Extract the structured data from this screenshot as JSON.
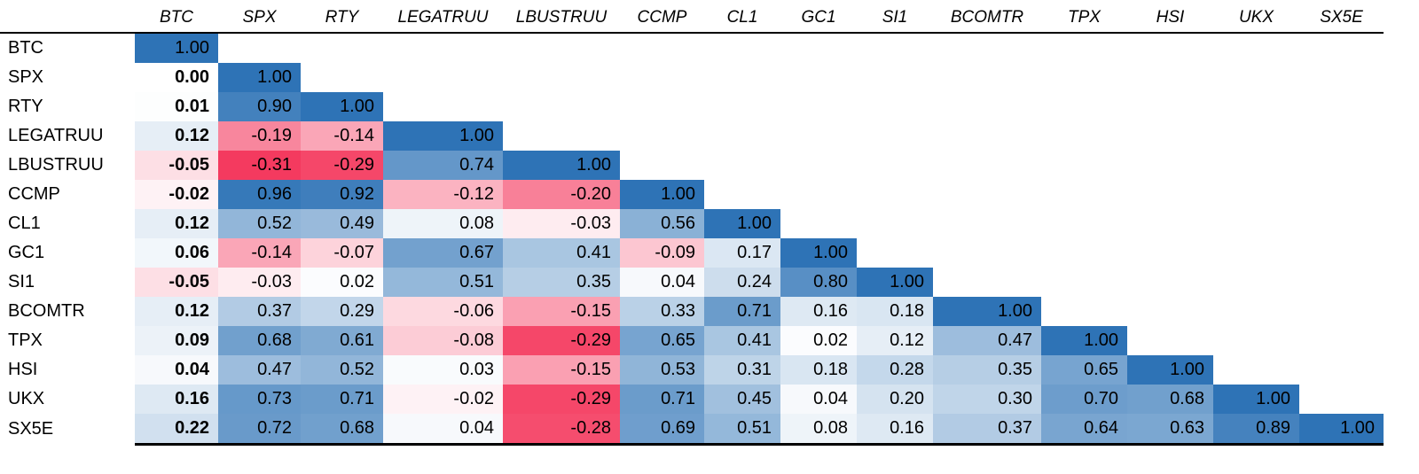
{
  "chart_data": {
    "type": "heatmap",
    "title": "",
    "labels": [
      "BTC",
      "SPX",
      "RTY",
      "LEGATRUU",
      "LBUSTRUU",
      "CCMP",
      "CL1",
      "GC1",
      "SI1",
      "BCOMTR",
      "TPX",
      "HSI",
      "UKX",
      "SX5E"
    ],
    "matrix": [
      [
        1.0
      ],
      [
        0.0,
        1.0
      ],
      [
        0.01,
        0.9,
        1.0
      ],
      [
        0.12,
        -0.19,
        -0.14,
        1.0
      ],
      [
        -0.05,
        -0.31,
        -0.29,
        0.74,
        1.0
      ],
      [
        -0.02,
        0.96,
        0.92,
        -0.12,
        -0.2,
        1.0
      ],
      [
        0.12,
        0.52,
        0.49,
        0.08,
        -0.03,
        0.56,
        1.0
      ],
      [
        0.06,
        -0.14,
        -0.07,
        0.67,
        0.41,
        -0.09,
        0.17,
        1.0
      ],
      [
        -0.05,
        -0.03,
        0.02,
        0.51,
        0.35,
        0.04,
        0.24,
        0.8,
        1.0
      ],
      [
        0.12,
        0.37,
        0.29,
        -0.06,
        -0.15,
        0.33,
        0.71,
        0.16,
        0.18,
        1.0
      ],
      [
        0.09,
        0.68,
        0.61,
        -0.08,
        -0.29,
        0.65,
        0.41,
        0.02,
        0.12,
        0.47,
        1.0
      ],
      [
        0.04,
        0.47,
        0.52,
        0.03,
        -0.15,
        0.53,
        0.31,
        0.18,
        0.28,
        0.35,
        0.65,
        1.0
      ],
      [
        0.16,
        0.73,
        0.71,
        -0.02,
        -0.29,
        0.71,
        0.45,
        0.04,
        0.2,
        0.3,
        0.7,
        0.68,
        1.0
      ],
      [
        0.22,
        0.72,
        0.68,
        0.04,
        -0.28,
        0.69,
        0.51,
        0.08,
        0.16,
        0.37,
        0.64,
        0.63,
        0.89,
        1.0
      ]
    ],
    "shape": "lower-triangular",
    "value_format": "two-decimals",
    "first_data_column_bold": true,
    "color_scale": {
      "min_value": -0.31,
      "mid_value": 0,
      "max_value": 1.0,
      "min_color": "#f43a5f",
      "mid_color": "#ffffff",
      "max_color": "#2e73b6"
    },
    "grid": false,
    "legend": false
  }
}
